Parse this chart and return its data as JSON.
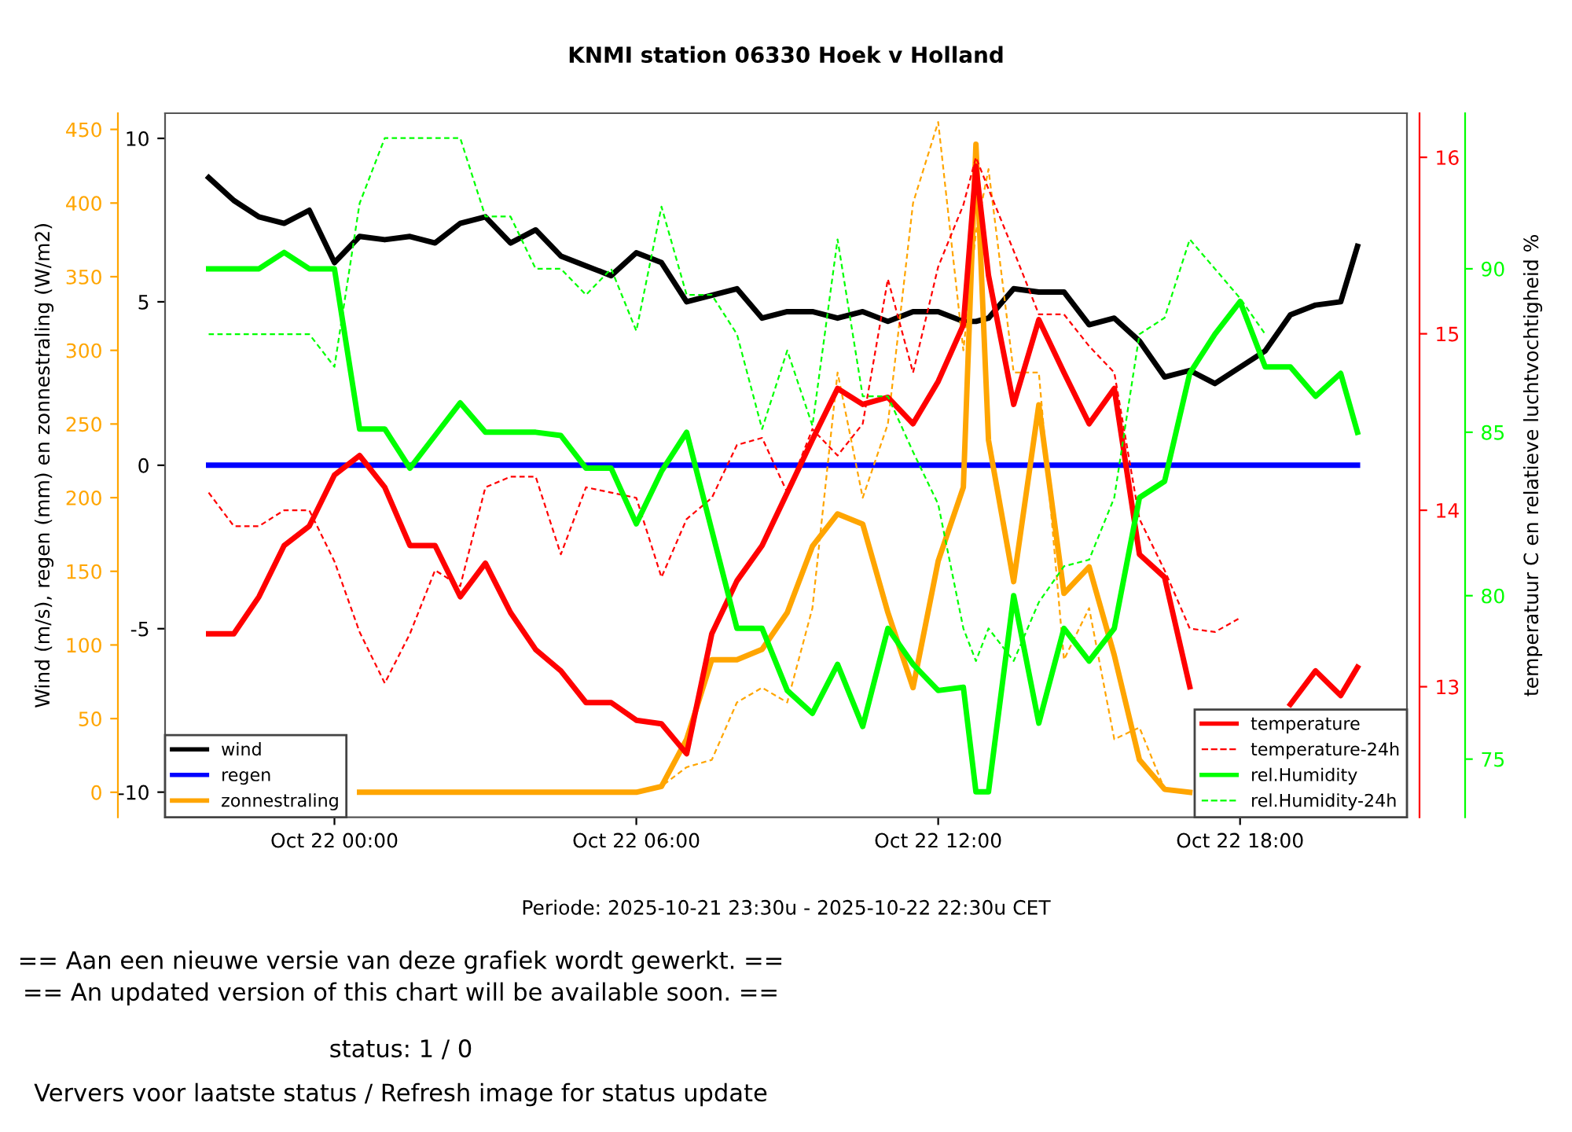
{
  "chart_data": [
    {
      "type": "line",
      "title": "KNMI station 06330 Hoek v Holland",
      "xlabel": "Periode: 2025-10-21 23:30u - 2025-10-22 22:30u CET",
      "y2label": "Wind (m/s), regen (mm) en zonnestraling (W/m2)",
      "annotations": [
        "== Aan een nieuwe versie van deze grafiek wordt gewerkt. ==",
        "== An updated version of this chart will be available soon. ==",
        "status: 1 / 0",
        "Ververs voor laatste status / Refresh image for status update"
      ],
      "x": [
        "2025-10-21T21:30",
        "2025-10-21T22:00",
        "2025-10-21T22:30",
        "2025-10-21T23:00",
        "2025-10-21T23:30",
        "2025-10-22T00:00",
        "2025-10-22T00:30",
        "2025-10-22T01:00",
        "2025-10-22T01:30",
        "2025-10-22T02:00",
        "2025-10-22T02:30",
        "2025-10-22T03:00",
        "2025-10-22T03:30",
        "2025-10-22T04:00",
        "2025-10-22T04:30",
        "2025-10-22T05:00",
        "2025-10-22T05:30",
        "2025-10-22T06:00",
        "2025-10-22T06:30",
        "2025-10-22T07:00",
        "2025-10-22T07:30",
        "2025-10-22T08:00",
        "2025-10-22T08:30",
        "2025-10-22T09:00",
        "2025-10-22T09:30",
        "2025-10-22T10:00",
        "2025-10-22T10:30",
        "2025-10-22T11:00",
        "2025-10-22T11:30",
        "2025-10-22T12:00",
        "2025-10-22T12:30",
        "2025-10-22T12:45",
        "2025-10-22T13:00",
        "2025-10-22T13:30",
        "2025-10-22T14:00",
        "2025-10-22T14:30",
        "2025-10-22T15:00",
        "2025-10-22T15:30",
        "2025-10-22T16:00",
        "2025-10-22T16:30",
        "2025-10-22T17:00",
        "2025-10-22T17:30",
        "2025-10-22T18:00",
        "2025-10-22T18:30",
        "2025-10-22T19:00",
        "2025-10-22T19:30",
        "2025-10-22T20:00",
        "2025-10-22T20:20"
      ],
      "xlim": [
        "2025-10-21T20:38",
        "2025-10-22T21:19"
      ],
      "xticks": [
        {
          "value": "2025-10-22T00:00",
          "label": "Oct 22 00:00"
        },
        {
          "value": "2025-10-22T06:00",
          "label": "Oct 22 06:00"
        },
        {
          "value": "2025-10-22T12:00",
          "label": "Oct 22 12:00"
        },
        {
          "value": "2025-10-22T18:00",
          "label": "Oct 22 18:00"
        }
      ],
      "ylim": [
        -10.77,
        10.77
      ],
      "yticks": [
        -10,
        -5,
        0,
        5,
        10
      ],
      "y2lim": [
        -17,
        461
      ],
      "y2ticks": [
        0,
        50,
        100,
        150,
        200,
        250,
        300,
        350,
        400,
        450
      ],
      "grid": false,
      "legend": "bottom left",
      "marker": "none",
      "series": [
        {
          "name": "wind",
          "color": "#000000",
          "values": [
            8.8,
            8.1,
            7.6,
            7.4,
            7.8,
            6.2,
            7.0,
            6.9,
            7.0,
            6.8,
            7.4,
            7.6,
            6.8,
            7.2,
            6.4,
            6.1,
            5.8,
            6.5,
            6.2,
            5.0,
            5.2,
            5.4,
            4.5,
            4.7,
            4.7,
            4.5,
            4.7,
            4.4,
            4.7,
            4.7,
            4.4,
            4.4,
            4.5,
            5.4,
            5.3,
            5.3,
            4.3,
            4.5,
            3.8,
            2.7,
            2.9,
            2.5,
            3.0,
            3.5,
            4.6,
            4.9,
            5.0,
            6.7
          ]
        },
        {
          "name": "regen",
          "color": "#0000ff",
          "values": [
            0,
            0,
            0,
            0,
            0,
            0,
            0,
            0,
            0,
            0,
            0,
            0,
            0,
            0,
            0,
            0,
            0,
            0,
            0,
            0,
            0,
            0,
            0,
            0,
            0,
            0,
            0,
            0,
            0,
            0,
            0,
            0,
            0,
            0,
            0,
            0,
            0,
            0,
            0,
            0,
            0,
            0,
            0,
            0,
            0,
            0,
            0,
            0
          ]
        },
        {
          "name": "zonnestraling",
          "color": "#ffa500",
          "axis": "y2",
          "values": [
            null,
            null,
            null,
            null,
            null,
            null,
            0,
            0,
            0,
            0,
            0,
            0,
            0,
            0,
            0,
            0,
            0,
            0,
            4,
            36,
            90,
            90,
            97,
            122,
            167,
            189,
            182,
            122,
            71,
            157,
            207,
            440,
            239,
            143,
            263,
            135,
            153,
            93,
            22,
            2,
            0,
            null,
            null,
            null,
            null,
            null,
            null,
            null
          ]
        },
        {
          "color": "#ffa500",
          "axis": "y2",
          "line_style": "dashed",
          "values": [
            null,
            null,
            null,
            null,
            null,
            null,
            0,
            0,
            0,
            0,
            0,
            0,
            0,
            0,
            0,
            0,
            0,
            0,
            4,
            17,
            22,
            61,
            71,
            61,
            125,
            285,
            200,
            250,
            400,
            455,
            300,
            380,
            423,
            285,
            285,
            90,
            125,
            36,
            44,
            2,
            0,
            null,
            null,
            null,
            null,
            null,
            null,
            null
          ]
        }
      ]
    },
    {
      "type": "line",
      "y2label": "temperatuur C en relatieve luchtvochtigheid %",
      "x": [
        "2025-10-21T21:30",
        "2025-10-21T22:00",
        "2025-10-21T22:30",
        "2025-10-21T23:00",
        "2025-10-21T23:30",
        "2025-10-22T00:00",
        "2025-10-22T00:30",
        "2025-10-22T01:00",
        "2025-10-22T01:30",
        "2025-10-22T02:00",
        "2025-10-22T02:30",
        "2025-10-22T03:00",
        "2025-10-22T03:30",
        "2025-10-22T04:00",
        "2025-10-22T04:30",
        "2025-10-22T05:00",
        "2025-10-22T05:30",
        "2025-10-22T06:00",
        "2025-10-22T06:30",
        "2025-10-22T07:00",
        "2025-10-22T07:30",
        "2025-10-22T08:00",
        "2025-10-22T08:30",
        "2025-10-22T09:00",
        "2025-10-22T09:30",
        "2025-10-22T10:00",
        "2025-10-22T10:30",
        "2025-10-22T11:00",
        "2025-10-22T11:30",
        "2025-10-22T12:00",
        "2025-10-22T12:30",
        "2025-10-22T12:45",
        "2025-10-22T13:00",
        "2025-10-22T13:30",
        "2025-10-22T14:00",
        "2025-10-22T14:30",
        "2025-10-22T15:00",
        "2025-10-22T15:30",
        "2025-10-22T16:00",
        "2025-10-22T16:30",
        "2025-10-22T17:00",
        "2025-10-22T17:30",
        "2025-10-22T18:00",
        "2025-10-22T18:30",
        "2025-10-22T19:00",
        "2025-10-22T19:30",
        "2025-10-22T20:00",
        "2025-10-22T20:20"
      ],
      "xlim": [
        "2025-10-21T20:38",
        "2025-10-22T21:19"
      ],
      "ylim": [
        12.26,
        16.25
      ],
      "yticks": [
        13,
        14,
        15,
        16
      ],
      "y2lim": [
        73.22,
        94.76
      ],
      "y2ticks": [
        75,
        80,
        85,
        90
      ],
      "tick_labels": "y",
      "grid": false,
      "legend": "bottom right",
      "marker": "none",
      "series": [
        {
          "name": "temperature",
          "color": "#ff0000",
          "values": [
            13.3,
            13.3,
            13.51,
            13.8,
            13.91,
            14.2,
            14.31,
            14.13,
            13.8,
            13.8,
            13.51,
            13.7,
            13.42,
            13.21,
            13.09,
            12.91,
            12.91,
            12.81,
            12.79,
            12.62,
            13.3,
            13.6,
            13.8,
            14.1,
            14.4,
            14.69,
            14.6,
            14.64,
            14.49,
            14.73,
            15.05,
            15.95,
            15.33,
            14.6,
            15.08,
            14.78,
            14.49,
            14.69,
            13.75,
            13.62,
            13.0,
            null,
            null,
            null,
            12.9,
            13.09,
            12.95,
            13.11
          ]
        },
        {
          "name": "temperature-24h",
          "color": "#ff0000",
          "line_style": "dashed",
          "values": [
            14.1,
            13.91,
            13.91,
            14.0,
            14.0,
            13.71,
            13.31,
            13.02,
            13.3,
            13.66,
            13.57,
            14.13,
            14.19,
            14.19,
            13.75,
            14.13,
            14.1,
            14.07,
            13.62,
            13.95,
            14.07,
            14.37,
            14.41,
            14.1,
            14.46,
            14.31,
            14.49,
            15.31,
            14.78,
            15.38,
            15.73,
            16.0,
            15.82,
            15.47,
            15.11,
            15.11,
            14.93,
            14.78,
            13.95,
            13.66,
            13.33,
            13.31,
            13.39,
            null,
            null,
            null,
            null,
            null
          ]
        },
        {
          "name": "rel.Humidity",
          "color": "#00ff00",
          "axis": "y2",
          "values": [
            90.0,
            90.0,
            90.0,
            90.5,
            90.0,
            90.0,
            85.1,
            85.1,
            83.9,
            84.9,
            85.9,
            85.0,
            85.0,
            85.0,
            84.9,
            83.9,
            83.9,
            82.2,
            83.8,
            85.0,
            82.0,
            79.0,
            79.0,
            77.1,
            76.4,
            77.9,
            76.0,
            79.0,
            77.9,
            77.1,
            77.2,
            74.0,
            74.0,
            80.0,
            76.1,
            79.0,
            78.0,
            79.0,
            83.0,
            83.5,
            86.8,
            88.0,
            89.0,
            87.0,
            87.0,
            86.1,
            86.8,
            85.0
          ]
        },
        {
          "name": "rel.Humidity-24h",
          "color": "#00ff00",
          "axis": "y2",
          "line_style": "dashed",
          "values": [
            88.0,
            88.0,
            88.0,
            88.0,
            88.0,
            87.0,
            92.0,
            94.0,
            94.0,
            94.0,
            94.0,
            91.6,
            91.6,
            90.0,
            90.0,
            89.2,
            90.0,
            88.1,
            91.9,
            89.2,
            89.2,
            88.0,
            85.1,
            87.5,
            85.2,
            90.9,
            86.1,
            86.1,
            84.4,
            82.8,
            79.0,
            78.0,
            79.0,
            78.0,
            79.8,
            80.9,
            81.1,
            83.0,
            88.0,
            88.5,
            90.9,
            90.0,
            89.1,
            88.0,
            null,
            null,
            null,
            null
          ]
        }
      ]
    }
  ]
}
